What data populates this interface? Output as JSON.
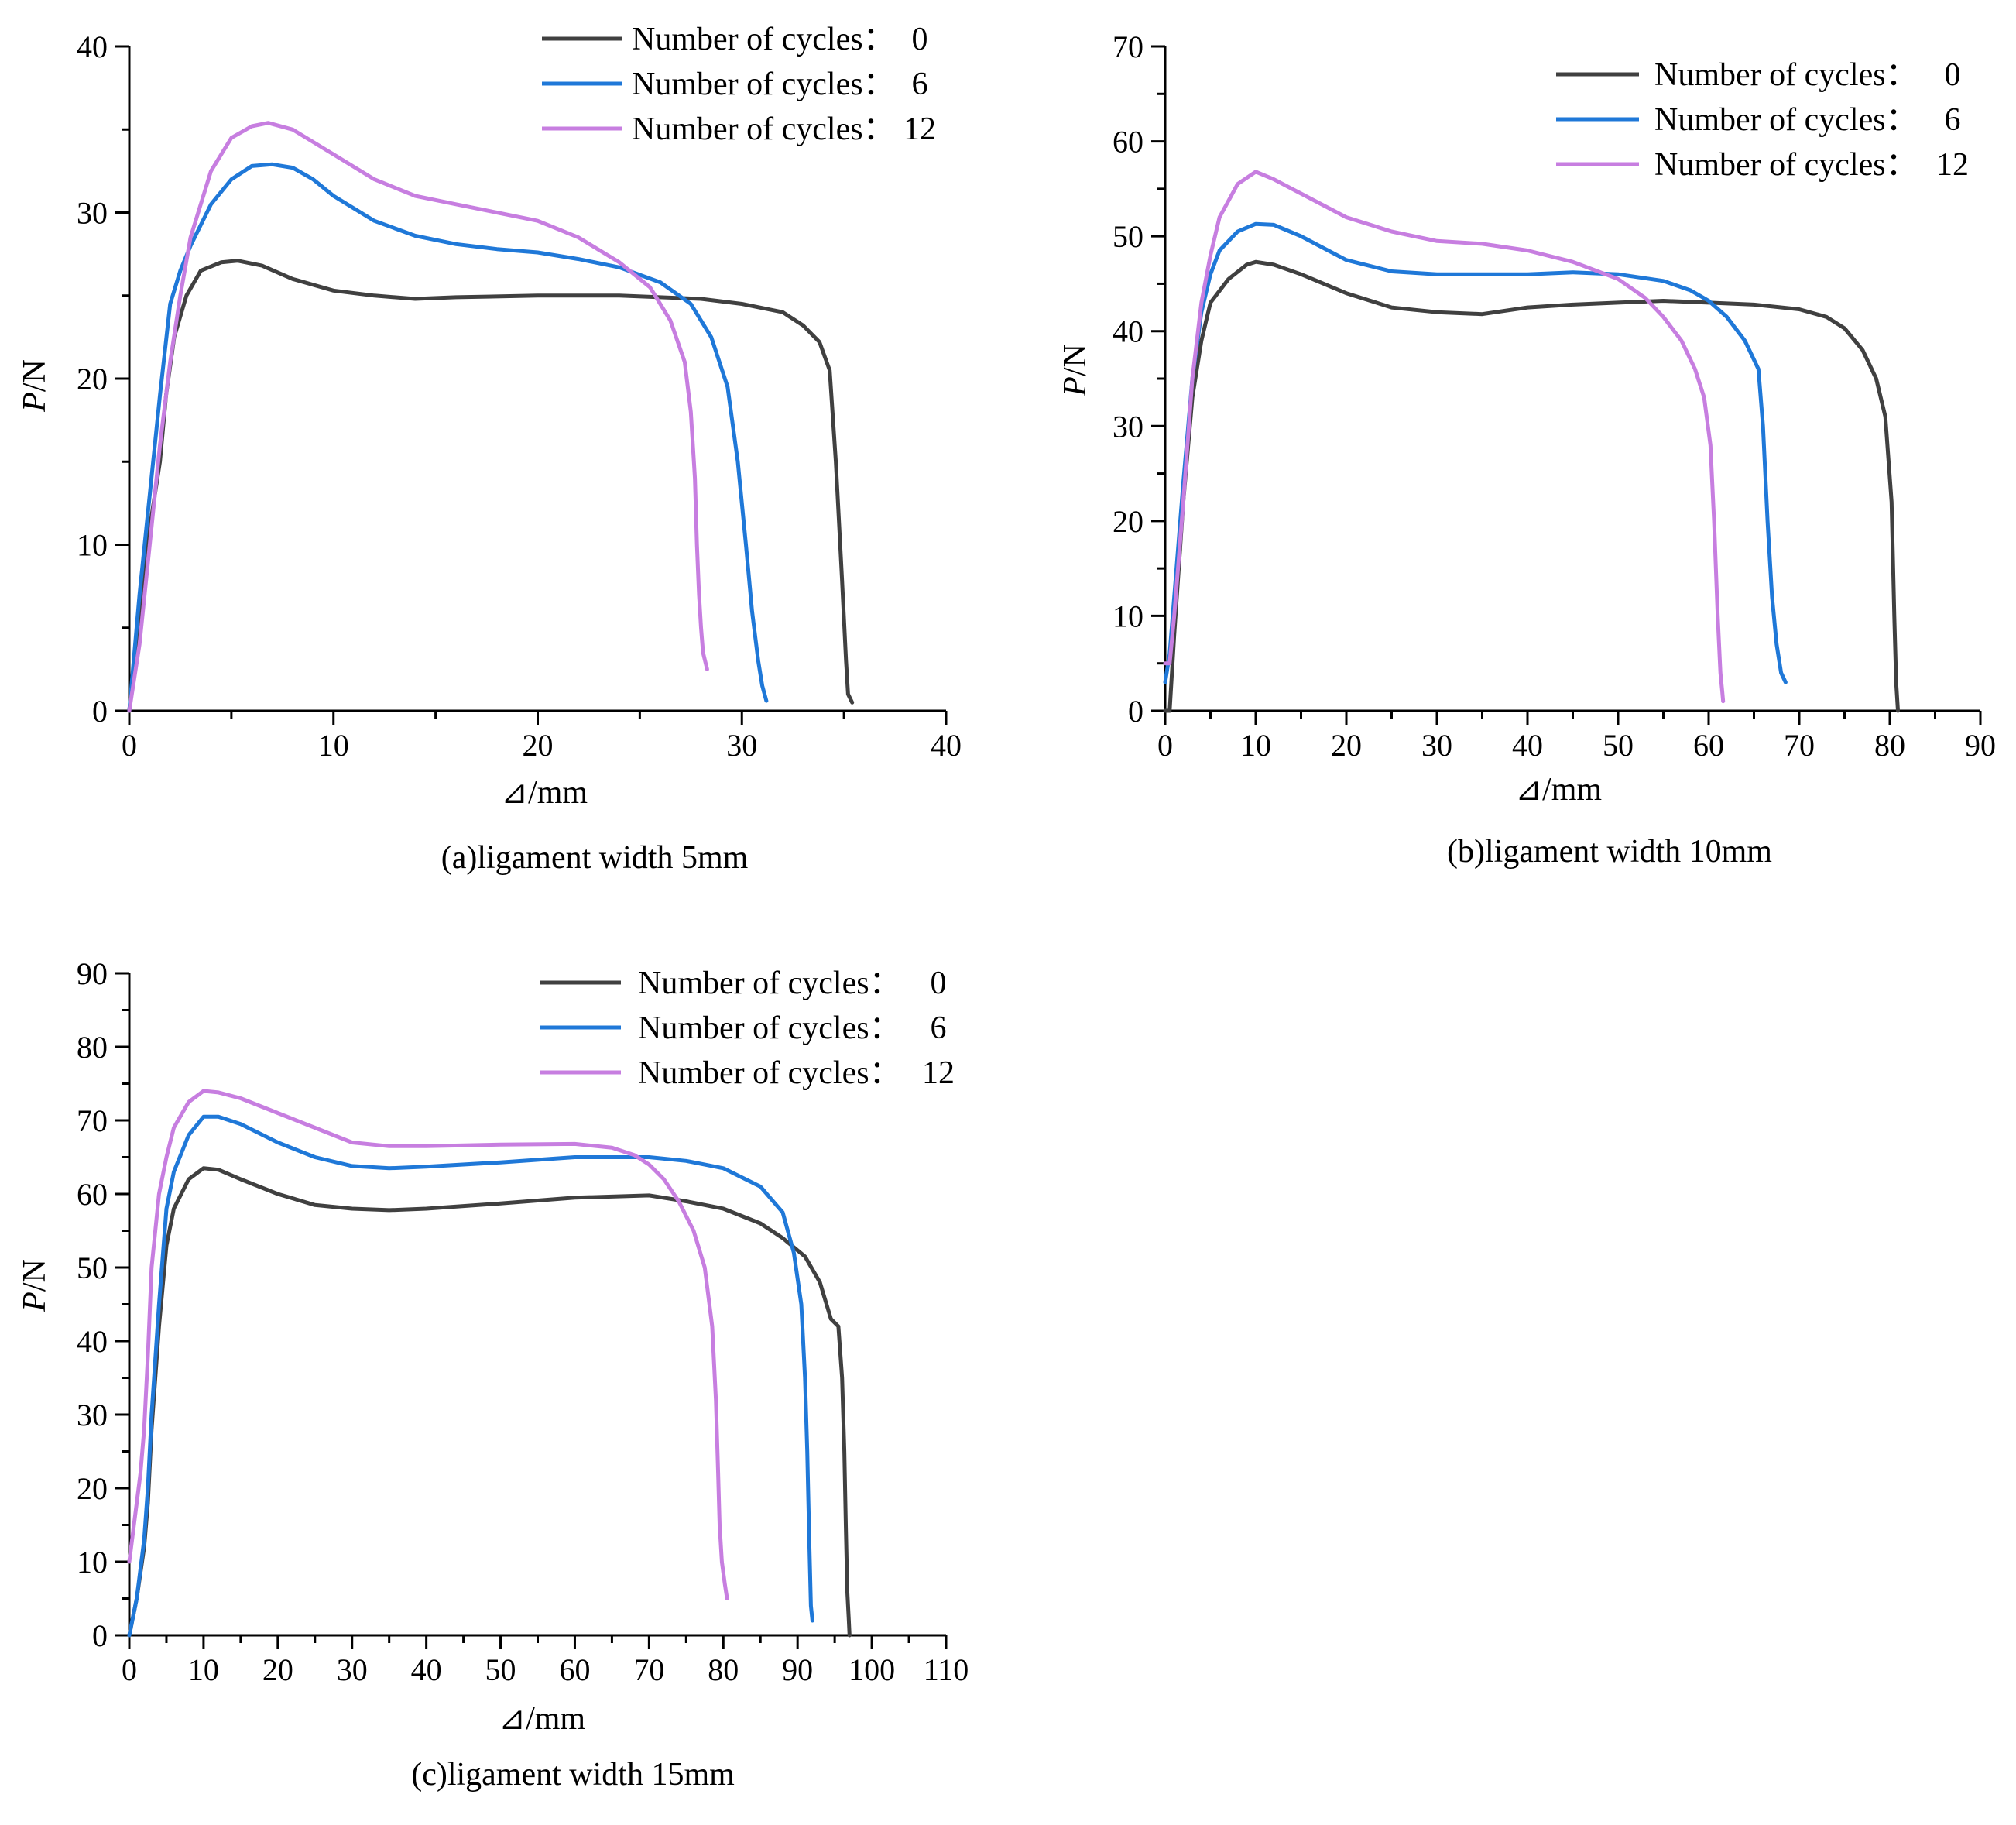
{
  "figure": {
    "colors": {
      "cycles_0": "#404040",
      "cycles_6": "#1f78d8",
      "cycles_12": "#c77ee0"
    }
  },
  "chart_data": [
    {
      "type": "line",
      "caption": "(a)ligament width 5mm",
      "xlabel": "⊿/mm",
      "ylabel_italic": "P",
      "ylabel_rest": "/N",
      "xlim": [
        0,
        40
      ],
      "ylim": [
        0,
        40
      ],
      "xticks": [
        0,
        10,
        20,
        30,
        40
      ],
      "yticks": [
        0,
        10,
        20,
        30,
        40
      ],
      "xtick_labels": [
        "0",
        "10",
        "20",
        "30",
        "40"
      ],
      "ytick_labels": [
        "0",
        "10",
        "20",
        "30",
        "40"
      ],
      "legend_position": "top-right",
      "series": [
        {
          "name": "Number of cycles：0",
          "legend_label": "Number of cycles：",
          "legend_value": "0",
          "color": "#404040",
          "x": [
            0,
            0.5,
            1,
            1.5,
            1.8,
            2.2,
            2.8,
            3.5,
            4.5,
            5.3,
            6.5,
            8,
            10,
            12,
            14,
            16,
            20,
            24,
            28,
            30,
            32,
            33,
            33.8,
            34.3,
            34.6,
            34.9,
            35.1,
            35.2,
            35.4
          ],
          "y": [
            0,
            6,
            11,
            15,
            19,
            22.5,
            25,
            26.5,
            27,
            27.1,
            26.8,
            26,
            25.3,
            25,
            24.8,
            24.9,
            25,
            25,
            24.8,
            24.5,
            24,
            23.2,
            22.2,
            20.5,
            15,
            8,
            3,
            1,
            0.5
          ]
        },
        {
          "name": "Number of cycles：6",
          "legend_label": "Number of cycles：",
          "legend_value": "6",
          "color": "#1f78d8",
          "x": [
            0,
            0.5,
            1,
            1.5,
            2,
            2.5,
            3,
            4,
            5,
            6,
            7,
            8,
            9,
            10,
            12,
            14,
            16,
            18,
            20,
            22,
            24,
            26,
            27.5,
            28.5,
            29.3,
            29.8,
            30.2,
            30.5,
            30.8,
            31.0,
            31.2
          ],
          "y": [
            0,
            7,
            13,
            19,
            24.5,
            26.5,
            28,
            30.5,
            32,
            32.8,
            32.9,
            32.7,
            32,
            31,
            29.5,
            28.6,
            28.1,
            27.8,
            27.6,
            27.2,
            26.7,
            25.8,
            24.5,
            22.5,
            19.5,
            15,
            10,
            6,
            3,
            1.5,
            0.6
          ]
        },
        {
          "name": "Number of cycles：12",
          "legend_label": "Number of cycles：",
          "legend_value": "12",
          "color": "#c77ee0",
          "x": [
            0,
            0.5,
            1,
            1.5,
            2,
            2.5,
            3,
            4,
            5,
            6,
            6.8,
            8,
            10,
            12,
            14,
            16,
            18,
            20,
            22,
            24,
            25.5,
            26.5,
            27.2,
            27.5,
            27.7,
            27.8,
            27.9,
            28.0,
            28.1,
            28.3
          ],
          "y": [
            0,
            4,
            10,
            16,
            21,
            25,
            28.5,
            32.5,
            34.5,
            35.2,
            35.4,
            35,
            33.5,
            32,
            31,
            30.5,
            30,
            29.5,
            28.5,
            27,
            25.5,
            23.5,
            21,
            18,
            14,
            10,
            7,
            5,
            3.5,
            2.5
          ]
        }
      ]
    },
    {
      "type": "line",
      "caption": "(b)ligament width 10mm",
      "xlabel": "⊿/mm",
      "ylabel_italic": "P",
      "ylabel_rest": "/N",
      "xlim": [
        0,
        90
      ],
      "ylim": [
        0,
        70
      ],
      "xticks": [
        0,
        10,
        20,
        30,
        40,
        50,
        60,
        70,
        80,
        90
      ],
      "yticks": [
        0,
        10,
        20,
        30,
        40,
        50,
        60,
        70
      ],
      "xtick_labels": [
        "0",
        "10",
        "20",
        "30",
        "40",
        "50",
        "60",
        "70",
        "80",
        "90"
      ],
      "ytick_labels": [
        "0",
        "10",
        "20",
        "30",
        "40",
        "50",
        "60",
        "70"
      ],
      "legend_position": "top-right",
      "series": [
        {
          "name": "Number of cycles：0",
          "legend_label": "Number of cycles：",
          "legend_value": "0",
          "color": "#404040",
          "x": [
            0,
            0.5,
            1,
            2,
            3,
            4,
            5,
            7,
            9,
            10,
            12,
            15,
            20,
            25,
            30,
            35,
            40,
            45,
            50,
            55,
            60,
            65,
            70,
            73,
            75,
            77,
            78.5,
            79.5,
            80.2,
            80.5,
            80.7,
            80.9
          ],
          "y": [
            0,
            0,
            8,
            22,
            33,
            39,
            43,
            45.5,
            47,
            47.3,
            47,
            46,
            44,
            42.5,
            42,
            41.8,
            42.5,
            42.8,
            43,
            43.2,
            43,
            42.8,
            42.3,
            41.5,
            40.3,
            38,
            35,
            31,
            22,
            10,
            3,
            0
          ]
        },
        {
          "name": "Number of cycles：6",
          "legend_label": "Number of cycles：",
          "legend_value": "6",
          "color": "#1f78d8",
          "x": [
            0,
            0.5,
            1,
            2,
            3,
            4,
            5,
            6,
            8,
            10,
            12,
            15,
            20,
            25,
            30,
            40,
            45,
            50,
            55,
            58,
            60,
            62,
            64,
            65.5,
            66,
            66.5,
            67,
            67.5,
            68,
            68.5
          ],
          "y": [
            3,
            6,
            12,
            24,
            35,
            42,
            46,
            48.5,
            50.5,
            51.3,
            51.2,
            50,
            47.5,
            46.3,
            46,
            46,
            46.2,
            46,
            45.3,
            44.3,
            43.2,
            41.5,
            39,
            36,
            30,
            20,
            12,
            7,
            4,
            3
          ]
        },
        {
          "name": "Number of cycles：12",
          "legend_label": "Number of cycles：",
          "legend_value": "12",
          "color": "#c77ee0",
          "x": [
            0,
            0.5,
            1,
            2,
            3,
            4,
            5,
            6,
            8,
            10,
            12,
            15,
            20,
            25,
            30,
            35,
            40,
            45,
            50,
            53,
            55,
            57,
            58.5,
            59.5,
            60.2,
            60.6,
            61,
            61.3,
            61.5,
            61.6
          ],
          "y": [
            5,
            5,
            10,
            22,
            35,
            43,
            48,
            52,
            55.5,
            56.8,
            56,
            54.5,
            52,
            50.5,
            49.5,
            49.2,
            48.5,
            47.3,
            45.5,
            43.5,
            41.5,
            39,
            36,
            33,
            28,
            20,
            10,
            4,
            2,
            1
          ]
        }
      ]
    },
    {
      "type": "line",
      "caption": "(c)ligament width 15mm",
      "xlabel": "⊿/mm",
      "ylabel_italic": "P",
      "ylabel_rest": "/N",
      "xlim": [
        0,
        110
      ],
      "ylim": [
        0,
        90
      ],
      "xticks": [
        0,
        10,
        20,
        30,
        40,
        50,
        60,
        70,
        80,
        90,
        100,
        110
      ],
      "yticks": [
        0,
        10,
        20,
        30,
        40,
        50,
        60,
        70,
        80,
        90
      ],
      "xtick_labels": [
        "0",
        "10",
        "20",
        "30",
        "40",
        "50",
        "60",
        "70",
        "80",
        "90",
        "100",
        "110"
      ],
      "ytick_labels": [
        "0",
        "10",
        "20",
        "30",
        "40",
        "50",
        "60",
        "70",
        "80",
        "90"
      ],
      "legend_position": "top-right",
      "series": [
        {
          "name": "Number of cycles：0",
          "legend_label": "Number of cycles：",
          "legend_value": "0",
          "color": "#404040",
          "x": [
            0,
            1,
            2,
            2.5,
            3,
            4,
            5,
            6,
            8,
            10,
            12,
            15,
            20,
            25,
            30,
            35,
            40,
            50,
            60,
            70,
            75,
            80,
            85,
            88,
            91,
            93,
            94.5,
            95.5,
            96,
            96.3,
            96.5,
            96.7,
            96.9,
            97
          ],
          "y": [
            0,
            5,
            12,
            18,
            28,
            42,
            53,
            58,
            62,
            63.5,
            63.3,
            62,
            60,
            58.5,
            58,
            57.8,
            58,
            58.7,
            59.5,
            59.8,
            59,
            58,
            56,
            54,
            51.5,
            48,
            43,
            42,
            35,
            25,
            15,
            6,
            2,
            0
          ]
        },
        {
          "name": "Number of cycles：6",
          "legend_label": "Number of cycles：",
          "legend_value": "6",
          "color": "#1f78d8",
          "x": [
            0,
            1,
            2,
            2.5,
            3,
            4,
            5,
            6,
            8,
            10,
            12,
            15,
            20,
            25,
            30,
            35,
            40,
            50,
            60,
            70,
            75,
            80,
            85,
            88,
            89.5,
            90.5,
            91,
            91.3,
            91.6,
            91.8,
            92
          ],
          "y": [
            0,
            5,
            13,
            20,
            30,
            45,
            58,
            63,
            68,
            70.5,
            70.5,
            69.5,
            67,
            65,
            63.8,
            63.5,
            63.7,
            64.3,
            65,
            65,
            64.5,
            63.5,
            61,
            57.5,
            52,
            45,
            35,
            25,
            12,
            4,
            2
          ]
        },
        {
          "name": "Number of cycles：12",
          "legend_label": "Number of cycles：",
          "legend_value": "12",
          "color": "#c77ee0",
          "x": [
            0,
            0.5,
            1,
            1.5,
            2,
            2.5,
            3,
            4,
            5,
            6,
            8,
            10,
            12,
            15,
            20,
            25,
            30,
            35,
            40,
            50,
            60,
            65,
            68,
            70,
            72,
            74,
            76,
            77.5,
            78.5,
            79,
            79.3,
            79.5,
            79.8,
            80.2,
            80.5
          ],
          "y": [
            10,
            14,
            18,
            22,
            28,
            38,
            50,
            60,
            65,
            69,
            72.5,
            74,
            73.8,
            73,
            71,
            69,
            67,
            66.5,
            66.5,
            66.7,
            66.8,
            66.3,
            65.3,
            64,
            62,
            59,
            55,
            50,
            42,
            32,
            22,
            15,
            10,
            7,
            5
          ]
        }
      ]
    }
  ]
}
